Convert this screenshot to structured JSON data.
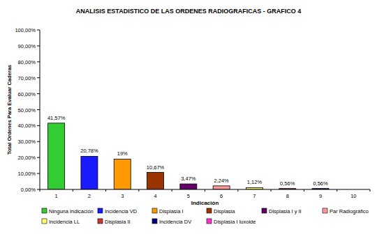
{
  "chart_data": {
    "type": "bar",
    "title": "ANALISIS ESTADISTICO DE LAS ORDENES RADIOGRAFICAS - GRAFICO 4",
    "x_label": "Indicación",
    "y_label": "Total Ordenes Para Evaluar Caderas",
    "categories": [
      "1",
      "2",
      "3",
      "4",
      "5",
      "6",
      "7",
      "8",
      "9",
      "10"
    ],
    "values": [
      41.57,
      20.78,
      19,
      10.67,
      3.47,
      2.24,
      1.12,
      0.56,
      0.56,
      null
    ],
    "value_labels": [
      "41,57%",
      "20,78%",
      "19%",
      "10,67%",
      "3,47%",
      "2,24%",
      "1,12%",
      "0,56%",
      "0,56%",
      null
    ],
    "colors": [
      "#33cc33",
      "#1a1aff",
      "#ff9900",
      "#993300",
      "#660066",
      "#ff9999",
      "#ffff66",
      "#cc3333",
      "#000080",
      "#ff33cc"
    ],
    "legend_labels": [
      "Ninguna Indicación",
      "Incidencia VD",
      "Displasia I",
      "Displasia",
      "Displasia I y II",
      "Par Radiográfico",
      "Incidencia LL",
      "Displasia II",
      "Incidencia DV",
      "Displasia I luxoide"
    ],
    "ylim": [
      0,
      100
    ],
    "yticks": [
      {
        "value": 0,
        "label": "0,00%"
      },
      {
        "value": 10,
        "label": "10,00%"
      },
      {
        "value": 20,
        "label": "20,00%"
      },
      {
        "value": 30,
        "label": "30,00%"
      },
      {
        "value": 40,
        "label": "40,00%"
      },
      {
        "value": 50,
        "label": "50,00%"
      },
      {
        "value": 60,
        "label": "60,00%"
      },
      {
        "value": 70,
        "label": "70,00%"
      },
      {
        "value": 80,
        "label": "80,00%"
      },
      {
        "value": 90,
        "label": "90,00%"
      },
      {
        "value": 100,
        "label": "100,00%"
      }
    ],
    "grid": false,
    "data_labels": true,
    "legend": "bottom"
  }
}
